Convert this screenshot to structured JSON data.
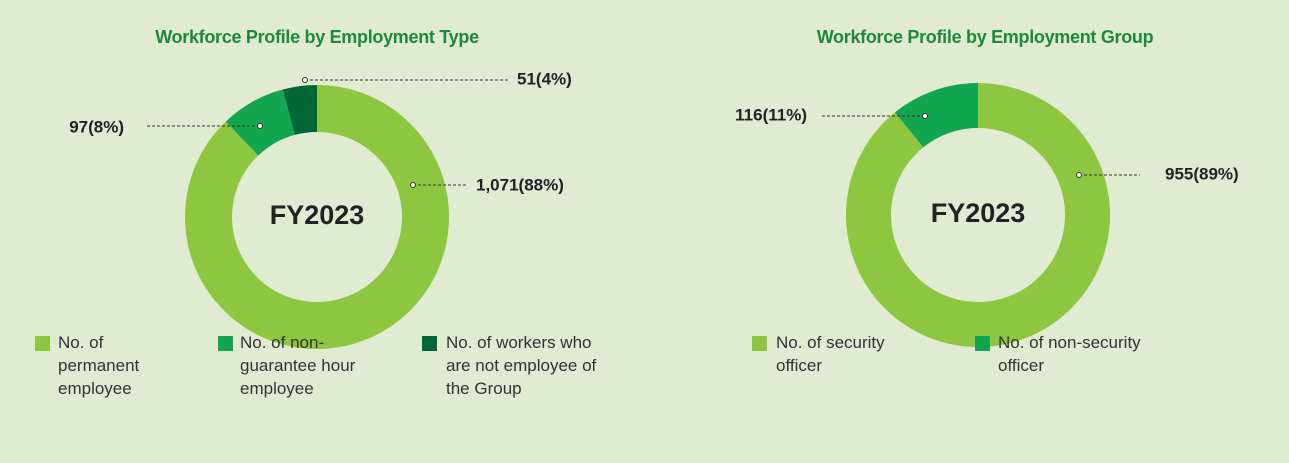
{
  "chart_data": [
    {
      "type": "donut",
      "title": "Workforce Profile by Employment Type",
      "center_label": "FY2023",
      "categories": [
        "No. of permanent employee",
        "No. of non-guarantee hour employee",
        "No. of workers who are not employee of the Group"
      ],
      "values": [
        1071,
        97,
        51
      ],
      "value_labels": [
        "1,071(88%)",
        "97(8%)",
        "51(4%)"
      ],
      "colors": [
        "#8dc63f",
        "#12a650",
        "#006838"
      ]
    },
    {
      "type": "donut",
      "title": "Workforce Profile by Employment Group",
      "center_label": "FY2023",
      "categories": [
        "No. of security officer",
        "No. of non-security officer"
      ],
      "values": [
        955,
        116
      ],
      "value_labels": [
        "955(89%)",
        "116(11%)"
      ],
      "colors": [
        "#8dc63f",
        "#12a650"
      ]
    }
  ]
}
